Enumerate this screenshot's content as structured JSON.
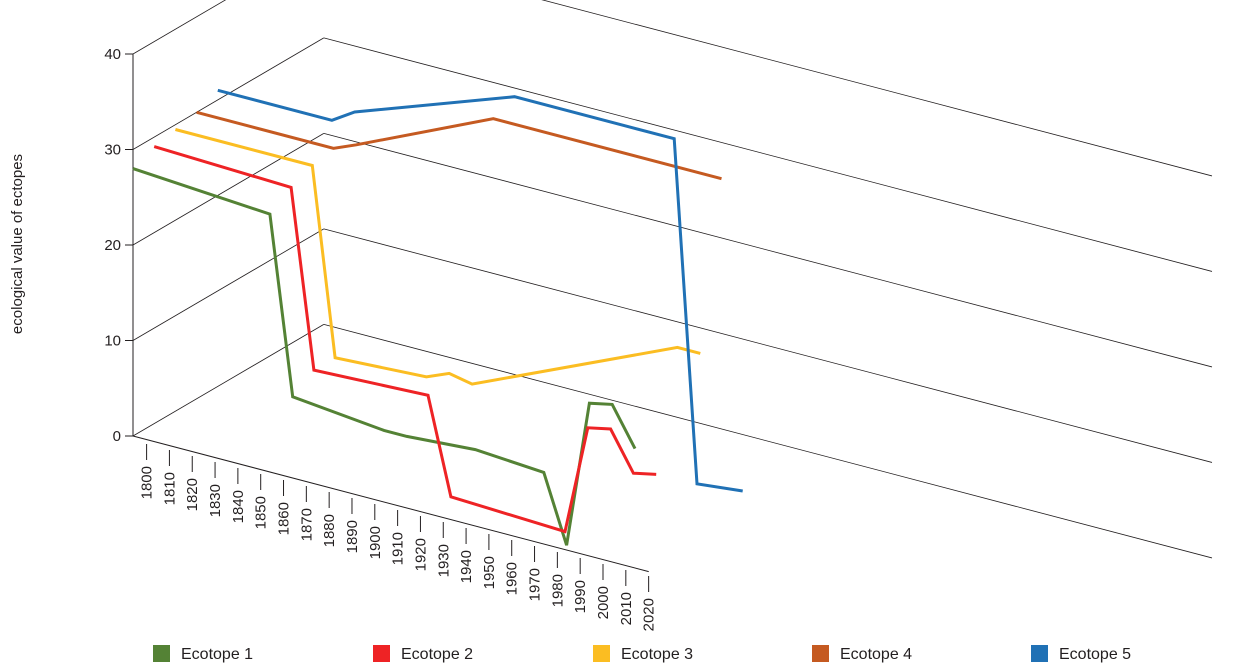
{
  "chart_data": {
    "type": "line",
    "title": "",
    "xlabel": "",
    "ylabel": "ecological value of ectopes",
    "ylim": [
      0,
      40
    ],
    "yticks": [
      0,
      10,
      20,
      30,
      40
    ],
    "x_categories": [
      "1800",
      "1810",
      "1820",
      "1830",
      "1840",
      "1850",
      "1860",
      "1870",
      "1880",
      "1890",
      "1900",
      "1910",
      "1920",
      "1930",
      "1940",
      "1950",
      "1960",
      "1970",
      "1980",
      "1990",
      "2000",
      "2010",
      "2020"
    ],
    "grid": true,
    "legend_position": "bottom",
    "series": [
      {
        "name": "Ecotope 1",
        "color": "#548235",
        "x": [
          1800,
          1860,
          1870,
          1910,
          1920,
          1950,
          1980,
          1990,
          2000,
          2010,
          2020
        ],
        "y": [
          28,
          27,
          8.5,
          7.5,
          7.5,
          8,
          7.5,
          0.5,
          16,
          16.5,
          12.5
        ]
      },
      {
        "name": "Ecotope 2",
        "color": "#ee2325",
        "x": [
          1800,
          1860,
          1870,
          1920,
          1930,
          1980,
          1990,
          2000,
          2010,
          2020
        ],
        "y": [
          29,
          28.5,
          10,
          10.5,
          0.5,
          0,
          11.5,
          12,
          8,
          8.5
        ]
      },
      {
        "name": "Ecotope 3",
        "color": "#fbbd22",
        "x": [
          1800,
          1860,
          1870,
          1910,
          1920,
          1930,
          2020,
          2030
        ],
        "y": [
          29.5,
          29.5,
          10,
          10.5,
          11.5,
          11,
          20.5,
          20.5
        ]
      },
      {
        "name": "Ecotope 4",
        "color": "#c55a21",
        "x": [
          1800,
          1860,
          1870,
          1930,
          2030
        ],
        "y": [
          30,
          30,
          31,
          37.5,
          37.5
        ]
      },
      {
        "name": "Ecotope 5",
        "color": "#2071b5",
        "x": [
          1800,
          1850,
          1860,
          1930,
          2000,
          2010,
          2030
        ],
        "y": [
          31,
          31,
          32.5,
          38.5,
          38.5,
          3,
          3.5
        ]
      }
    ]
  }
}
